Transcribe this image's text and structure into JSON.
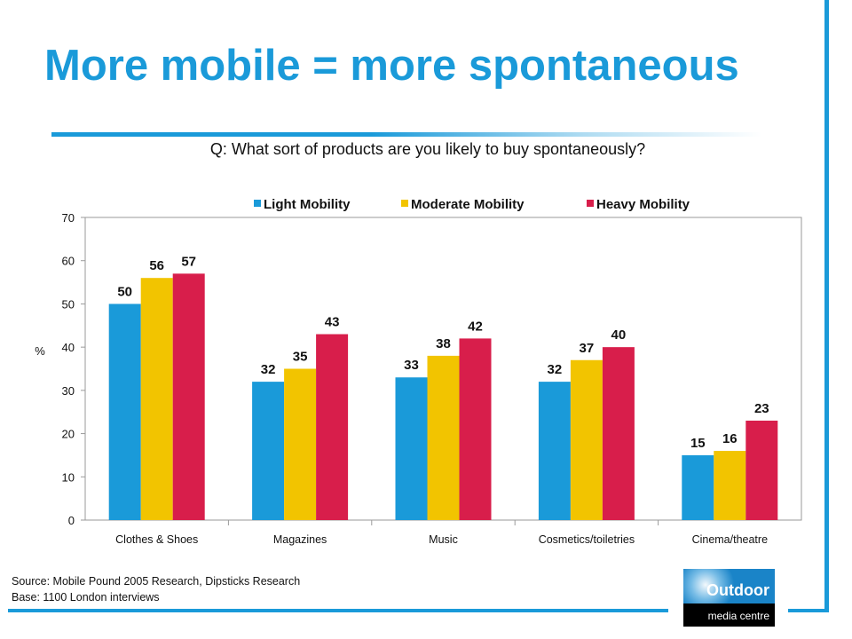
{
  "slide": {
    "title": "More mobile = more spontaneous",
    "question": "Q: What sort of products are you likely to buy spontaneously?",
    "source_line": "Source: Mobile Pound 2005 Research, Dipsticks Research",
    "base_line": "Base: 1100 London interviews",
    "accent_color": "#1a9ad9"
  },
  "logo": {
    "word": "Outdoor",
    "subtext": "media centre"
  },
  "chart_data": {
    "type": "bar",
    "title": "",
    "xlabel": "",
    "ylabel": "%",
    "ylim": [
      0,
      70
    ],
    "yticks": [
      0,
      10,
      20,
      30,
      40,
      50,
      60,
      70
    ],
    "grid": false,
    "legend_position": "top",
    "categories": [
      "Clothes & Shoes",
      "Magazines",
      "Music",
      "Cosmetics/toiletries",
      "Cinema/theatre"
    ],
    "series": [
      {
        "name": "Light Mobility",
        "color": "#1a9ad9",
        "values": [
          50,
          32,
          33,
          32,
          15
        ]
      },
      {
        "name": "Moderate Mobility",
        "color": "#f2c400",
        "values": [
          56,
          35,
          38,
          37,
          16
        ]
      },
      {
        "name": "Heavy Mobility",
        "color": "#d81e4b",
        "values": [
          57,
          43,
          42,
          40,
          23
        ]
      }
    ]
  }
}
